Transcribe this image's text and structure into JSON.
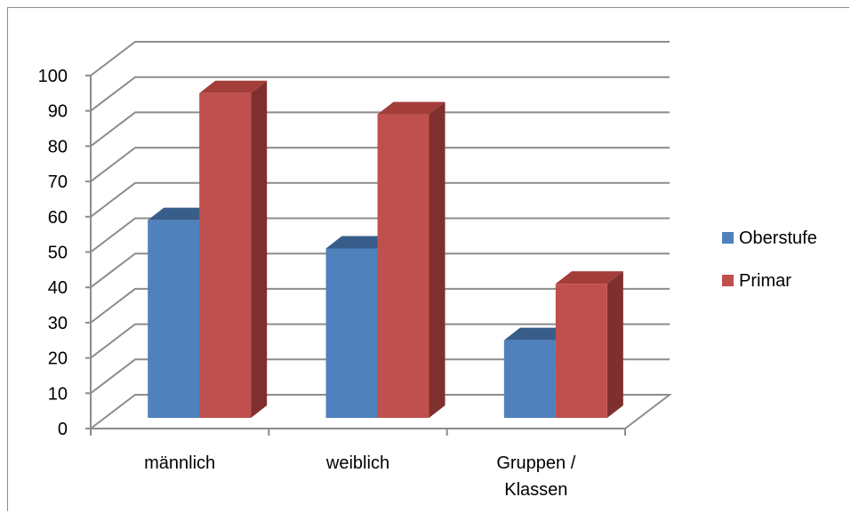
{
  "chart_data": {
    "type": "bar",
    "style": "3d-clustered-column",
    "categories": [
      "männlich",
      "weiblich",
      "Gruppen / Klassen"
    ],
    "series": [
      {
        "name": "Oberstufe",
        "values": [
          56,
          48,
          22
        ],
        "color": "#4f81bd",
        "top_color": "#385d8a",
        "side_color": "#2c4a70"
      },
      {
        "name": "Primar",
        "values": [
          92,
          86,
          38
        ],
        "color": "#c0504d",
        "top_color": "#a33d3a",
        "side_color": "#7f2f2d"
      }
    ],
    "ylim": [
      0,
      100
    ],
    "yticks": [
      "0",
      "10",
      "20",
      "30",
      "40",
      "50",
      "60",
      "70",
      "80",
      "90",
      "100"
    ],
    "grid": true,
    "legend_position": "right",
    "title": "",
    "xlabel": "",
    "ylabel": ""
  }
}
